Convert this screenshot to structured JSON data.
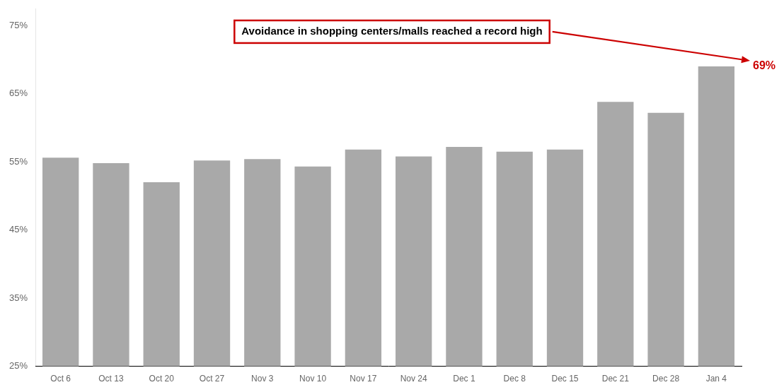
{
  "chart_data": {
    "type": "bar",
    "categories": [
      "Oct 6",
      "Oct 13",
      "Oct 20",
      "Oct 27",
      "Nov 3",
      "Nov 10",
      "Nov 17",
      "Nov 24",
      "Dec 1",
      "Dec 8",
      "Dec 15",
      "Dec 21",
      "Dec 28",
      "Jan 4"
    ],
    "values": [
      0.556,
      0.548,
      0.52,
      0.552,
      0.554,
      0.543,
      0.568,
      0.558,
      0.572,
      0.565,
      0.568,
      0.638,
      0.622,
      0.69
    ],
    "color": "#a9a9a9",
    "ylim": [
      0.25,
      0.775
    ],
    "yticks": [
      {
        "value": 0.25,
        "label": "25%"
      },
      {
        "value": 0.35,
        "label": "35%"
      },
      {
        "value": 0.45,
        "label": "45%"
      },
      {
        "value": 0.55,
        "label": "55%"
      },
      {
        "value": 0.65,
        "label": "65%"
      },
      {
        "value": 0.75,
        "label": "75%"
      }
    ],
    "grid": false,
    "annotations": [
      {
        "text": "Avoidance in shopping centers/malls reached a record high",
        "color": "#cc0000"
      },
      {
        "text": "69%",
        "x": "Jan 4",
        "y": 0.69,
        "color": "#cc0000"
      }
    ]
  }
}
